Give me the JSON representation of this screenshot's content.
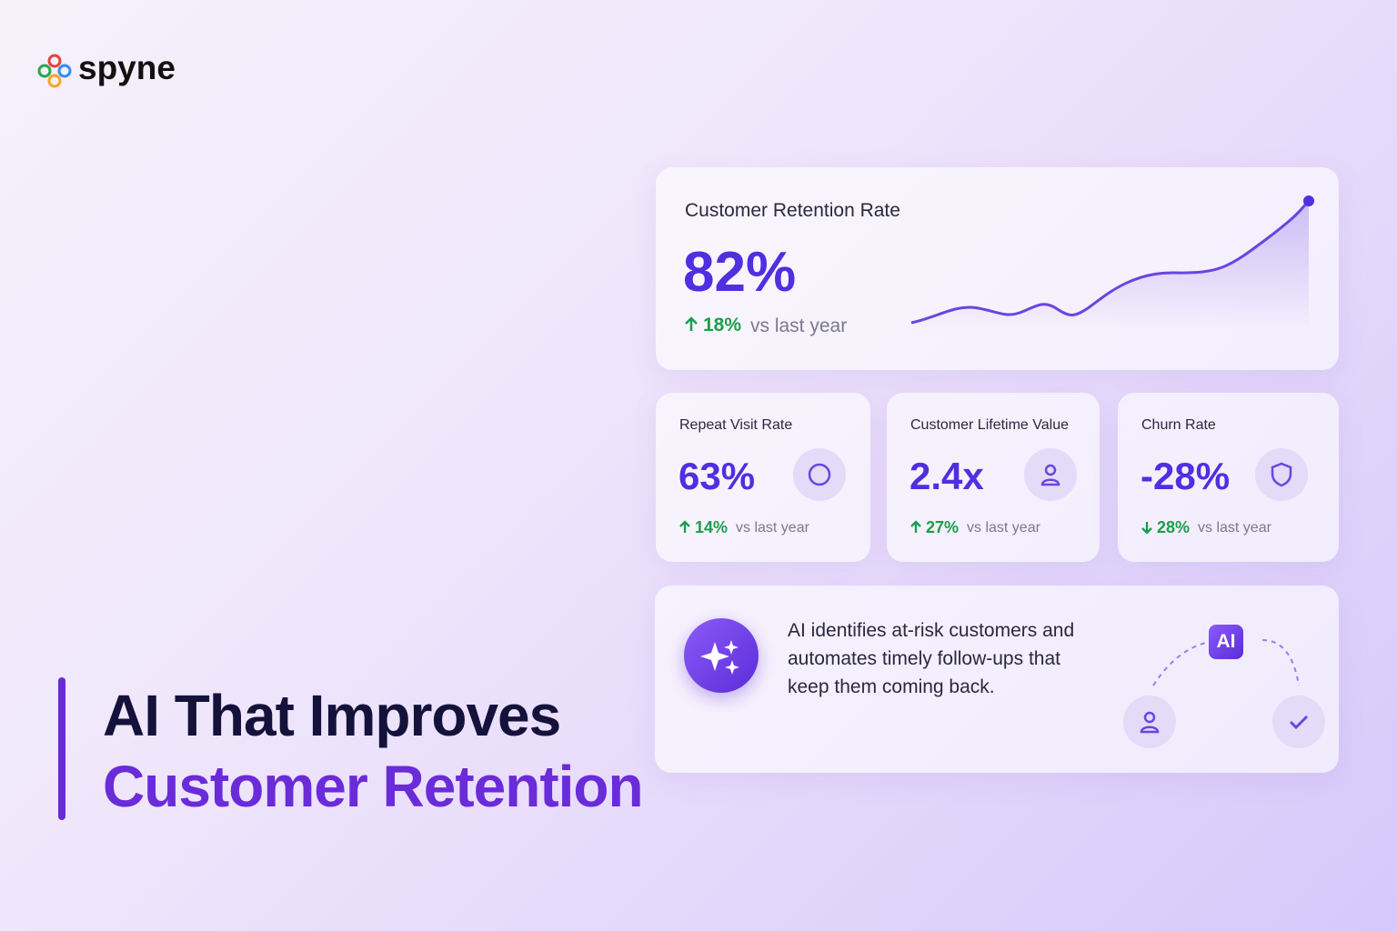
{
  "brand": "spyne",
  "headline": {
    "line1": "AI That Improves",
    "line2": "Customer Retention"
  },
  "main_card": {
    "title": "Customer Retention Rate",
    "value": "82%",
    "change": "18%",
    "comparison": "vs last year"
  },
  "metrics": [
    {
      "title": "Repeat Visit Rate",
      "value": "63%",
      "change": "14%",
      "comparison": "vs last year"
    },
    {
      "title": "Customer Lifetime Value",
      "value": "2.4x",
      "change": "27%",
      "comparison": "vs last year"
    },
    {
      "title": "Churn Rate",
      "value": "-28%",
      "change": "28%",
      "comparison": "vs last year"
    }
  ],
  "ai_card": {
    "lines": [
      "AI identifies at-risk customers and",
      "automates timely follow-ups that",
      "keep them coming back."
    ],
    "badge": "AI"
  }
}
